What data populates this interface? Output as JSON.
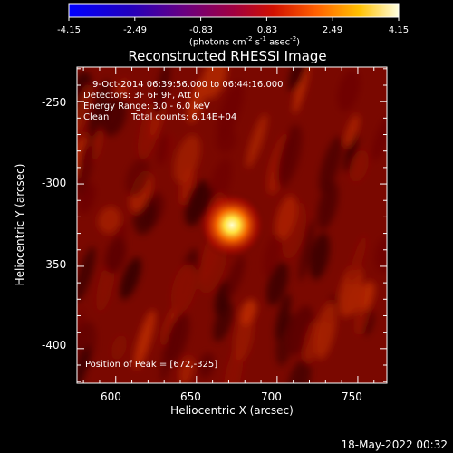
{
  "chart_data": {
    "type": "heatmap",
    "title": "Reconstructed RHESSI Image",
    "xlabel": "Heliocentric X (arcsec)",
    "ylabel": "Heliocentric Y (arcsec)",
    "xlim": [
      576,
      768
    ],
    "ylim": [
      -421,
      -229
    ],
    "x_ticks": [
      600,
      650,
      700,
      750
    ],
    "y_ticks": [
      -250,
      -300,
      -350,
      -400
    ],
    "colorbar": {
      "ticks": [
        "-4.15",
        "-2.49",
        "-0.83",
        "0.83",
        "2.49",
        "4.15"
      ],
      "range": [
        -4.15,
        4.15
      ],
      "unit_prefix": "(photons cm",
      "unit_exp1": "-2",
      "unit_mid1": " s",
      "unit_exp2": "-1",
      "unit_mid2": " asec",
      "unit_exp3": "-2",
      "unit_suffix": ")"
    },
    "annotations": {
      "time_range": "9-Oct-2014 06:39:56.000 to 06:44:16.000",
      "detectors": "Detectors: 3F 6F 9F, Att 0",
      "energy": "Energy Range: 3.0 - 6.0 keV",
      "method": "Clean",
      "counts": "Total counts: 6.14E+04",
      "peak": "Position of Peak = [672,-325]"
    },
    "source": {
      "x": 672,
      "y": -325,
      "peak_value": 4.15
    },
    "background_level": 1.6
  },
  "footer_date": "18-May-2022 00:32"
}
